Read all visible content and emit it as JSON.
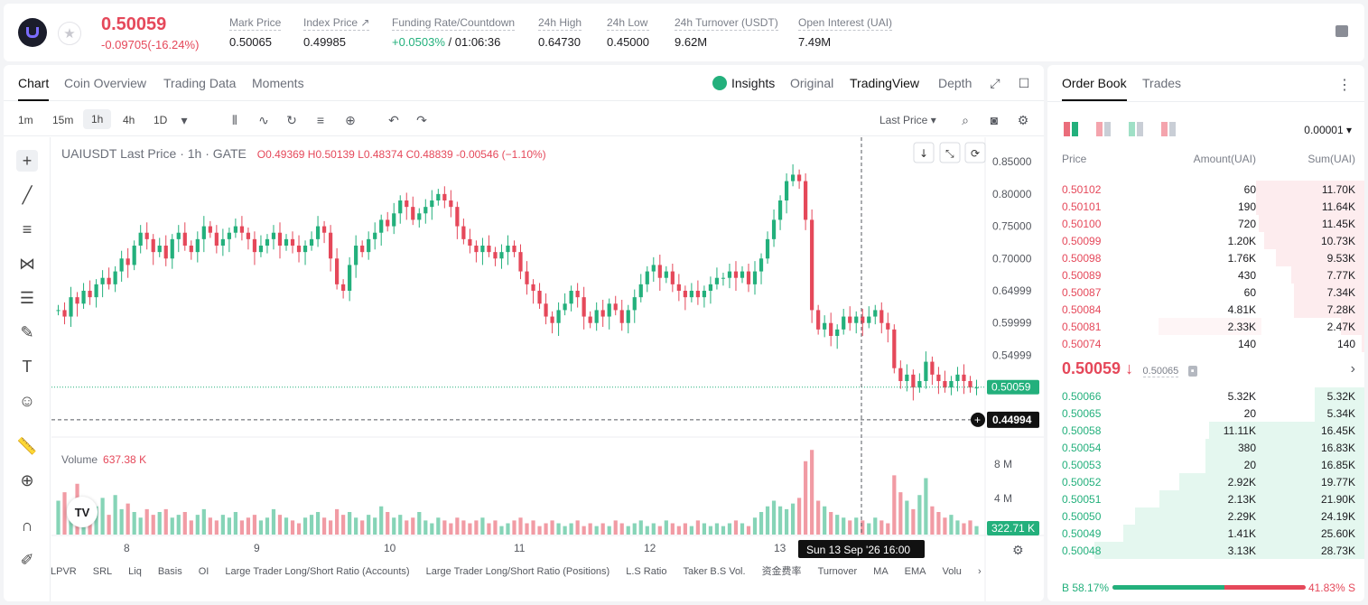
{
  "header": {
    "last_price": "0.50059",
    "change": "-0.09705(-16.24%)",
    "stats": [
      {
        "key": "Mark Price",
        "value": "0.50065",
        "x": 250
      },
      {
        "key": "Index Price ↗",
        "value": "0.49985",
        "x": 332
      },
      {
        "key": "Funding Rate/Countdown",
        "value_green": "+0.0503%",
        "value": " / 01:06:36",
        "x": 430
      },
      {
        "key": "24h High",
        "value": "0.64730",
        "x": 592
      },
      {
        "key": "24h Low",
        "value": "0.45000",
        "x": 668
      },
      {
        "key": "24h Turnover (USDT)",
        "value": "9.62M",
        "x": 743
      },
      {
        "key": "Open Interest (UAI)",
        "value": "7.49M",
        "x": 880
      }
    ]
  },
  "chart_tabs": {
    "chart": "Chart",
    "coin_overview": "Coin Overview",
    "trading_data": "Trading Data",
    "moments": "Moments",
    "insights": "Insights",
    "original": "Original",
    "tradingview": "TradingView",
    "depth": "Depth"
  },
  "timeframes": [
    "1m",
    "15m",
    "1h",
    "4h",
    "1D"
  ],
  "last_price_selector": "Last Price ▾",
  "legend": {
    "symbol": "UAIUSDT Last Price · 1h · GATE",
    "ohlc": "O0.49369  H0.50139  L0.48374  C0.48839  -0.00546 (−1.10%)",
    "volume_label": "Volume",
    "volume_value": "637.38 K"
  },
  "colors": {
    "up": "#23b07c",
    "down": "#e5485a"
  },
  "y_labels": [
    "0.85000",
    "0.80000",
    "0.75000",
    "0.70000",
    "0.64999",
    "0.59999",
    "0.54999"
  ],
  "price_tag": "0.50059",
  "cross_tag": "0.44994",
  "volume_y_labels": [
    "8 M",
    "4 M"
  ],
  "volume_tag": "322.71 K",
  "x_labels": [
    "8",
    "9",
    "10",
    "11",
    "12",
    "13"
  ],
  "crosshair_time": "Sun 13 Sep '26   16:00",
  "indicators": [
    "LPVR",
    "SRL",
    "Liq",
    "Basis",
    "OI",
    "Large Trader Long/Short Ratio (Accounts)",
    "Large Trader Long/Short Ratio (Positions)",
    "L.S Ratio",
    "Taker B.S Vol.",
    "资金费率",
    "Turnover",
    "MA",
    "EMA",
    "Volu"
  ],
  "chart_data": {
    "type": "candlestick",
    "series_start": 0.62,
    "closes": [
      0.62,
      0.61,
      0.64,
      0.63,
      0.65,
      0.64,
      0.66,
      0.67,
      0.66,
      0.68,
      0.7,
      0.69,
      0.72,
      0.74,
      0.73,
      0.71,
      0.72,
      0.7,
      0.73,
      0.74,
      0.72,
      0.71,
      0.73,
      0.75,
      0.74,
      0.72,
      0.73,
      0.74,
      0.75,
      0.74,
      0.73,
      0.71,
      0.72,
      0.73,
      0.74,
      0.72,
      0.73,
      0.72,
      0.71,
      0.72,
      0.73,
      0.75,
      0.74,
      0.7,
      0.66,
      0.65,
      0.69,
      0.72,
      0.71,
      0.73,
      0.74,
      0.76,
      0.75,
      0.77,
      0.79,
      0.78,
      0.76,
      0.77,
      0.78,
      0.79,
      0.8,
      0.79,
      0.78,
      0.75,
      0.73,
      0.72,
      0.71,
      0.72,
      0.71,
      0.7,
      0.71,
      0.72,
      0.71,
      0.68,
      0.66,
      0.65,
      0.63,
      0.61,
      0.6,
      0.62,
      0.63,
      0.65,
      0.64,
      0.61,
      0.6,
      0.62,
      0.61,
      0.63,
      0.62,
      0.6,
      0.62,
      0.64,
      0.66,
      0.68,
      0.69,
      0.67,
      0.68,
      0.66,
      0.65,
      0.64,
      0.65,
      0.64,
      0.65,
      0.66,
      0.67,
      0.67,
      0.68,
      0.67,
      0.68,
      0.66,
      0.68,
      0.7,
      0.73,
      0.76,
      0.79,
      0.82,
      0.83,
      0.82,
      0.76,
      0.62,
      0.59,
      0.6,
      0.58,
      0.59,
      0.61,
      0.6,
      0.61,
      0.6,
      0.61,
      0.62,
      0.6,
      0.59,
      0.53,
      0.51,
      0.52,
      0.5,
      0.51,
      0.54,
      0.52,
      0.51,
      0.5,
      0.51,
      0.52,
      0.51,
      0.5,
      0.5
    ],
    "volumes": [
      1.2,
      1.5,
      0.9,
      1.8,
      1.1,
      0.8,
      1.0,
      1.3,
      0.7,
      1.4,
      0.9,
      1.1,
      0.8,
      0.6,
      0.9,
      0.7,
      0.8,
      0.9,
      0.6,
      0.7,
      0.8,
      0.5,
      0.7,
      0.9,
      0.6,
      0.5,
      0.7,
      0.6,
      0.8,
      0.5,
      0.6,
      0.7,
      0.5,
      0.6,
      0.9,
      0.7,
      0.6,
      0.5,
      0.4,
      0.6,
      0.7,
      0.8,
      0.6,
      0.5,
      0.9,
      0.7,
      0.8,
      0.6,
      0.5,
      0.7,
      0.6,
      1.0,
      0.8,
      0.6,
      0.7,
      0.5,
      0.6,
      0.8,
      0.5,
      0.4,
      0.6,
      0.5,
      0.4,
      0.6,
      0.5,
      0.4,
      0.5,
      0.6,
      0.4,
      0.5,
      0.3,
      0.4,
      0.5,
      0.6,
      0.4,
      0.5,
      0.3,
      0.4,
      0.5,
      0.4,
      0.3,
      0.4,
      0.5,
      0.3,
      0.4,
      0.3,
      0.4,
      0.3,
      0.5,
      0.4,
      0.3,
      0.4,
      0.5,
      0.3,
      0.4,
      0.3,
      0.5,
      0.4,
      0.3,
      0.4,
      0.3,
      0.5,
      0.4,
      0.3,
      0.4,
      0.3,
      0.4,
      0.5,
      0.4,
      0.3,
      0.6,
      0.8,
      1.0,
      1.2,
      1.0,
      0.9,
      1.1,
      1.3,
      2.6,
      3.0,
      1.2,
      1.0,
      0.8,
      0.7,
      0.6,
      0.5,
      0.6,
      0.5,
      0.4,
      0.6,
      0.5,
      0.4,
      2.1,
      1.5,
      1.2,
      0.9,
      1.4,
      2.0,
      1.0,
      0.8,
      0.6,
      0.7,
      0.5,
      0.4,
      0.5,
      0.3
    ],
    "ylim": [
      0.44,
      0.86
    ]
  },
  "book": {
    "tab_order_book": "Order Book",
    "tab_trades": "Trades",
    "precision": "0.00001 ▾",
    "col_price": "Price",
    "col_amount": "Amount(UAI)",
    "col_sum": "Sum(UAI)",
    "asks": [
      {
        "p": "0.50102",
        "a": "60",
        "s": "11.70K",
        "w": 0.37,
        "w2": 0
      },
      {
        "p": "0.50101",
        "a": "190",
        "s": "11.64K",
        "w": 0.37,
        "w2": 0
      },
      {
        "p": "0.50100",
        "a": "720",
        "s": "11.45K",
        "w": 0.36,
        "w2": 0
      },
      {
        "p": "0.50099",
        "a": "1.20K",
        "s": "10.73K",
        "w": 0.34,
        "w2": 0
      },
      {
        "p": "0.50098",
        "a": "1.76K",
        "s": "9.53K",
        "w": 0.3,
        "w2": 0
      },
      {
        "p": "0.50089",
        "a": "430",
        "s": "7.77K",
        "w": 0.25,
        "w2": 0
      },
      {
        "p": "0.50087",
        "a": "60",
        "s": "7.34K",
        "w": 0.24,
        "w2": 0
      },
      {
        "p": "0.50084",
        "a": "4.81K",
        "s": "7.28K",
        "w": 0.24,
        "w2": 0
      },
      {
        "p": "0.50081",
        "a": "2.33K",
        "s": "2.47K",
        "w": 0.08,
        "w2": 0.35
      },
      {
        "p": "0.50074",
        "a": "140",
        "s": "140",
        "w": 0.01,
        "w2": 0
      }
    ],
    "mid_price": "0.50059 ↓",
    "mid_mark": "0.50065",
    "bids": [
      {
        "p": "0.50066",
        "a": "5.32K",
        "s": "5.32K",
        "w": 0.17,
        "w2": 0
      },
      {
        "p": "0.50065",
        "a": "20",
        "s": "5.34K",
        "w": 0.17,
        "w2": 0
      },
      {
        "p": "0.50058",
        "a": "11.11K",
        "s": "16.45K",
        "w": 0.53,
        "w2": 0
      },
      {
        "p": "0.50054",
        "a": "380",
        "s": "16.83K",
        "w": 0.54,
        "w2": 0
      },
      {
        "p": "0.50053",
        "a": "20",
        "s": "16.85K",
        "w": 0.54,
        "w2": 0
      },
      {
        "p": "0.50052",
        "a": "2.92K",
        "s": "19.77K",
        "w": 0.63,
        "w2": 0
      },
      {
        "p": "0.50051",
        "a": "2.13K",
        "s": "21.90K",
        "w": 0.7,
        "w2": 0
      },
      {
        "p": "0.50050",
        "a": "2.29K",
        "s": "24.19K",
        "w": 0.78,
        "w2": 0.35
      },
      {
        "p": "0.50049",
        "a": "1.41K",
        "s": "25.60K",
        "w": 0.82,
        "w2": 0
      },
      {
        "p": "0.50048",
        "a": "3.13K",
        "s": "28.73K",
        "w": 0.92,
        "w2": 0
      }
    ],
    "buy_ratio": "B 58.17%",
    "sell_ratio": "41.83% S",
    "buy_fraction": 0.5817
  }
}
